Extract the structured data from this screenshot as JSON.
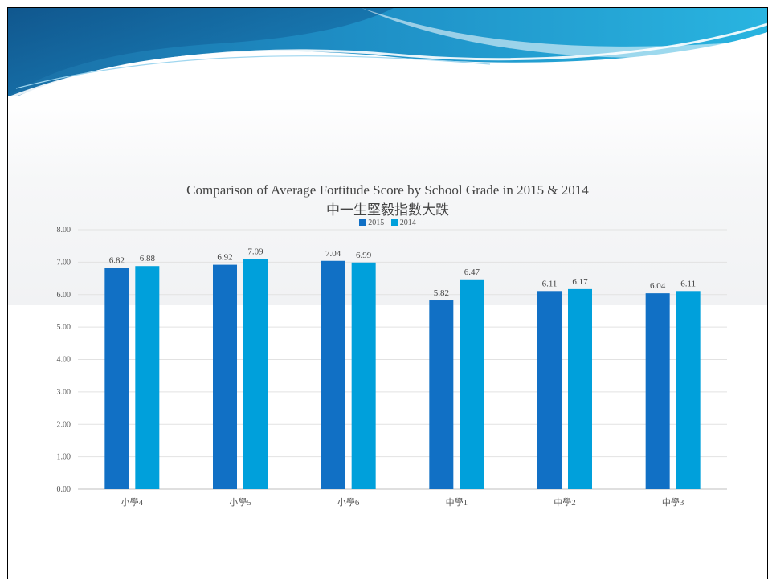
{
  "chart_data": {
    "type": "bar",
    "title": "Comparison of Average Fortitude Score by School Grade in 2015 & 2014",
    "subtitle": "中一生堅毅指數大跌",
    "categories": [
      "小學4",
      "小學5",
      "小學6",
      "中學1",
      "中學2",
      "中學3"
    ],
    "series": [
      {
        "name": "2015",
        "values": [
          6.82,
          6.92,
          7.04,
          5.82,
          6.11,
          6.04
        ],
        "labels": [
          "6.82",
          "6.92",
          "7.04",
          "5.82",
          "6.11",
          "6.04"
        ],
        "color": "#1170c5"
      },
      {
        "name": "2014",
        "values": [
          6.88,
          7.09,
          6.99,
          6.47,
          6.17,
          6.11
        ],
        "labels": [
          "6.88",
          "7.09",
          "6.99",
          "6.47",
          "6.17",
          "6.11"
        ],
        "color": "#00a0db"
      }
    ],
    "yticks": [
      "0.00",
      "1.00",
      "2.00",
      "3.00",
      "4.00",
      "5.00",
      "6.00",
      "7.00",
      "8.00"
    ],
    "ylim": [
      0,
      8
    ],
    "xlabel": "",
    "ylabel": "",
    "grid": true,
    "legend": "top-center"
  }
}
